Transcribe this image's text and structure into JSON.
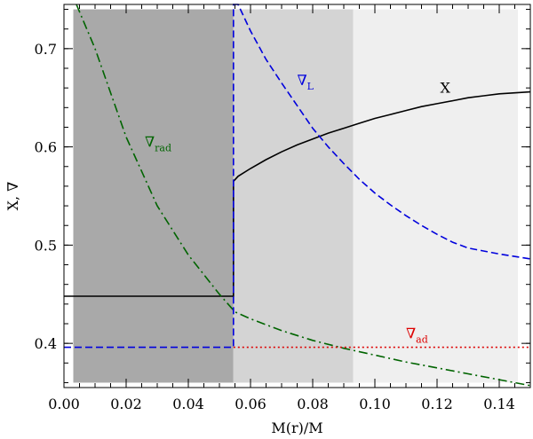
{
  "chart_data": {
    "type": "line",
    "xlabel": "M(r)/M",
    "ylabel": "X, ∇",
    "xlim": [
      0.0,
      0.15
    ],
    "ylim": [
      0.355,
      0.745
    ],
    "x_ticks": [
      "0.00",
      "0.02",
      "0.04",
      "0.06",
      "0.08",
      "0.10",
      "0.12",
      "0.14"
    ],
    "x_tick_values": [
      0.0,
      0.02,
      0.04,
      0.06,
      0.08,
      0.1,
      0.12,
      0.14
    ],
    "y_ticks": [
      "0.4",
      "0.5",
      "0.6",
      "0.7"
    ],
    "y_tick_values": [
      0.4,
      0.5,
      0.6,
      0.7
    ],
    "regions": [
      {
        "x0": 0.003,
        "x1": 0.0545,
        "color": "#a9a9a9"
      },
      {
        "x0": 0.0545,
        "x1": 0.093,
        "color": "#d4d4d4"
      },
      {
        "x0": 0.093,
        "x1": 0.146,
        "color": "#efefef"
      }
    ],
    "region_ylim": [
      0.36,
      0.74
    ],
    "series": [
      {
        "label": "X",
        "color": "#000000",
        "dash": "",
        "label_pos": [
          0.121,
          0.655
        ],
        "points": [
          [
            0.0,
            0.448
          ],
          [
            0.0545,
            0.448
          ],
          [
            0.0545,
            0.565
          ],
          [
            0.056,
            0.57
          ],
          [
            0.06,
            0.578
          ],
          [
            0.065,
            0.587
          ],
          [
            0.07,
            0.595
          ],
          [
            0.075,
            0.602
          ],
          [
            0.08,
            0.608
          ],
          [
            0.085,
            0.614
          ],
          [
            0.09,
            0.619
          ],
          [
            0.095,
            0.624
          ],
          [
            0.1,
            0.629
          ],
          [
            0.105,
            0.633
          ],
          [
            0.11,
            0.637
          ],
          [
            0.115,
            0.641
          ],
          [
            0.12,
            0.644
          ],
          [
            0.125,
            0.647
          ],
          [
            0.13,
            0.65
          ],
          [
            0.135,
            0.652
          ],
          [
            0.14,
            0.654
          ],
          [
            0.15,
            0.656
          ]
        ]
      },
      {
        "label": "∇",
        "sub": "rad",
        "color": "#006400",
        "dash": "10,4,2,4",
        "label_pos": [
          0.026,
          0.6
        ],
        "points": [
          [
            0.004,
            0.745
          ],
          [
            0.01,
            0.7
          ],
          [
            0.02,
            0.61
          ],
          [
            0.03,
            0.54
          ],
          [
            0.04,
            0.49
          ],
          [
            0.05,
            0.45
          ],
          [
            0.055,
            0.432
          ],
          [
            0.06,
            0.425
          ],
          [
            0.07,
            0.413
          ],
          [
            0.08,
            0.403
          ],
          [
            0.09,
            0.395
          ],
          [
            0.1,
            0.388
          ],
          [
            0.11,
            0.381
          ],
          [
            0.12,
            0.375
          ],
          [
            0.13,
            0.369
          ],
          [
            0.14,
            0.363
          ],
          [
            0.15,
            0.357
          ]
        ]
      },
      {
        "label": "∇",
        "sub": "L",
        "color": "#0000dd",
        "dash": "8,4",
        "label_pos": [
          0.075,
          0.663
        ],
        "points": [
          [
            0.0,
            0.396
          ],
          [
            0.0545,
            0.396
          ],
          [
            0.0545,
            0.745
          ],
          [
            0.056,
            0.745
          ],
          [
            0.06,
            0.718
          ],
          [
            0.065,
            0.689
          ],
          [
            0.07,
            0.665
          ],
          [
            0.075,
            0.642
          ],
          [
            0.08,
            0.619
          ],
          [
            0.085,
            0.6
          ],
          [
            0.09,
            0.583
          ],
          [
            0.095,
            0.567
          ],
          [
            0.1,
            0.553
          ],
          [
            0.105,
            0.541
          ],
          [
            0.11,
            0.53
          ],
          [
            0.115,
            0.52
          ],
          [
            0.12,
            0.511
          ],
          [
            0.125,
            0.503
          ],
          [
            0.13,
            0.497
          ],
          [
            0.14,
            0.491
          ],
          [
            0.15,
            0.486
          ]
        ]
      },
      {
        "label": "∇",
        "sub": "ad",
        "color": "#dd0000",
        "dash": "2,3",
        "label_pos": [
          0.11,
          0.405
        ],
        "points": [
          [
            0.0545,
            0.396
          ],
          [
            0.15,
            0.396
          ]
        ]
      }
    ]
  }
}
